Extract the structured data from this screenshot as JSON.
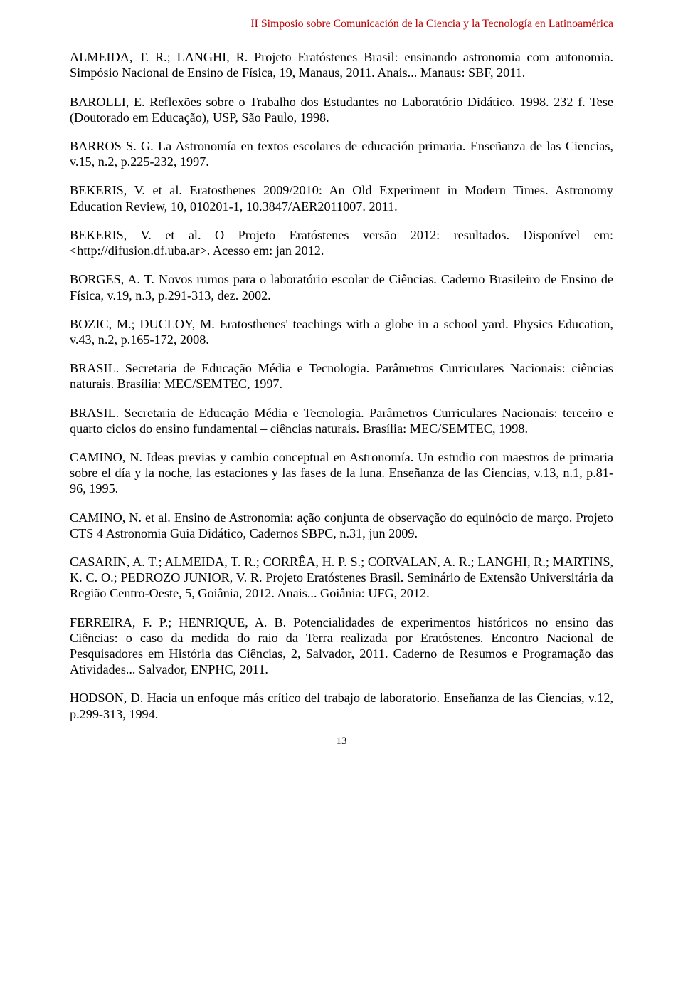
{
  "header": {
    "text": "II Simposio sobre Comunicación de la Ciencia y la Tecnología en Latinoamérica",
    "color": "#c00000"
  },
  "references": [
    "ALMEIDA, T. R.; LANGHI, R. Projeto Eratóstenes Brasil: ensinando astronomia com autonomia. Simpósio Nacional de Ensino de Física, 19, Manaus, 2011. Anais... Manaus: SBF, 2011.",
    "BAROLLI, E. Reflexões sobre o Trabalho dos Estudantes no Laboratório Didático. 1998. 232 f. Tese (Doutorado em Educação), USP, São Paulo, 1998.",
    "BARROS S. G. La Astronomía en textos escolares de educación primaria. Enseñanza de las Ciencias, v.15, n.2, p.225-232, 1997.",
    "BEKERIS, V. et al. Eratosthenes 2009/2010: An Old Experiment in Modern Times. Astronomy Education Review, 10, 010201-1, 10.3847/AER2011007. 2011.",
    "BEKERIS, V. et al. O Projeto Eratóstenes versão 2012: resultados. Disponível em: <http://difusion.df.uba.ar>. Acesso em: jan 2012.",
    "BORGES, A. T. Novos rumos para o laboratório escolar de Ciências. Caderno Brasileiro de Ensino de Física, v.19, n.3, p.291-313, dez. 2002.",
    "BOZIC, M.; DUCLOY, M. Eratosthenes' teachings with a globe in a school yard. Physics Education, v.43, n.2, p.165-172, 2008.",
    "BRASIL. Secretaria de Educação Média e Tecnologia. Parâmetros Curriculares Nacionais: ciências naturais. Brasília: MEC/SEMTEC, 1997.",
    "BRASIL. Secretaria de Educação Média e Tecnologia. Parâmetros Curriculares Nacionais: terceiro e quarto ciclos do ensino fundamental – ciências naturais. Brasília: MEC/SEMTEC, 1998.",
    "CAMINO, N. Ideas previas y cambio conceptual en Astronomía. Un estudio con maestros de primaria sobre el día y la noche, las estaciones y las fases de la luna. Enseñanza de las Ciencias, v.13, n.1, p.81-96, 1995.",
    "CAMINO, N. et al. Ensino de Astronomia: ação conjunta de observação do equinócio de março. Projeto CTS 4 Astronomia Guia Didático, Cadernos SBPC, n.31, jun 2009.",
    "CASARIN, A. T.; ALMEIDA, T. R.; CORRÊA, H. P. S.; CORVALAN, A. R.; LANGHI, R.; MARTINS, K. C. O.; PEDROZO JUNIOR, V. R. Projeto Eratóstenes Brasil. Seminário de Extensão Universitária da Região Centro-Oeste, 5, Goiânia, 2012. Anais... Goiânia: UFG, 2012.",
    "FERREIRA, F. P.; HENRIQUE, A. B. Potencialidades de experimentos históricos no ensino das Ciências: o caso da medida do raio da Terra realizada por Eratóstenes. Encontro Nacional de Pesquisadores em História das Ciências, 2, Salvador, 2011. Caderno de Resumos e Programação das Atividades... Salvador, ENPHC, 2011.",
    "HODSON, D. Hacia un enfoque más crítico del trabajo de laboratorio. Enseñanza de las Ciencias, v.12, p.299-313, 1994."
  ],
  "footer": {
    "page_number": "13"
  }
}
